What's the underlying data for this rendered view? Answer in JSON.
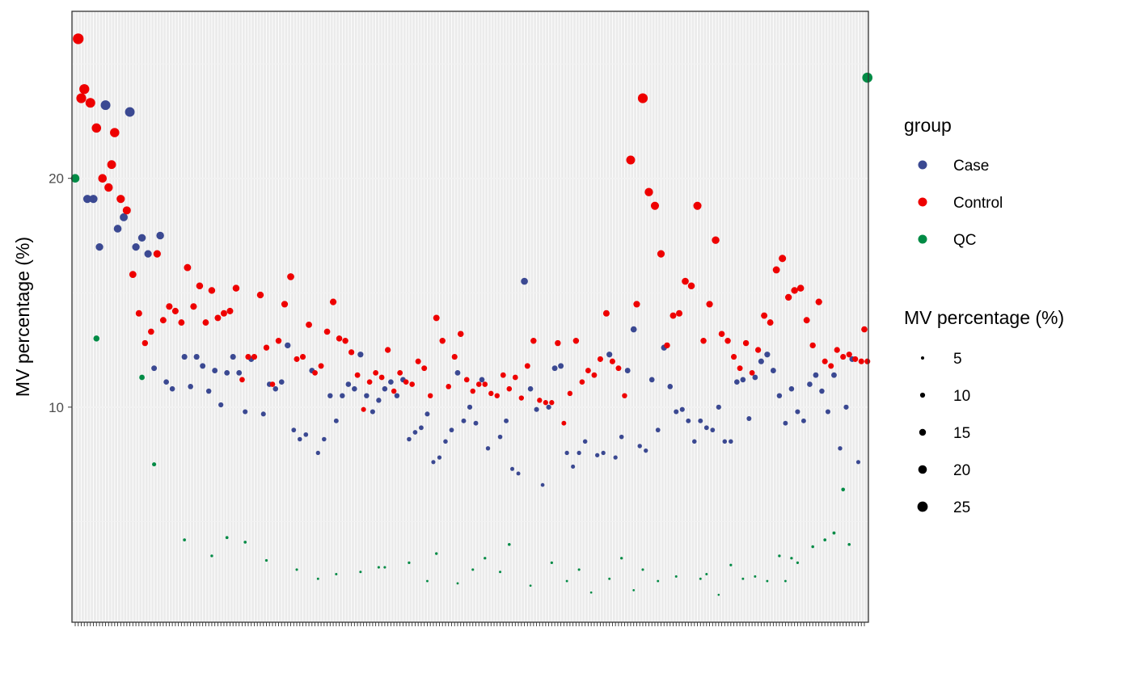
{
  "chart_data": {
    "type": "scatter",
    "title": "",
    "xlabel": "",
    "ylabel": "MV percentage (%)",
    "ylim": [
      0.6,
      27.3
    ],
    "y_ticks": [
      10,
      20
    ],
    "y_tick_labels": [
      "10",
      "20"
    ],
    "grid": true,
    "x_categories_count": 261,
    "x_tick_labels_visible": false,
    "colors": {
      "Case": "#3B4992",
      "Control": "#EE0000",
      "QC": "#008B45"
    },
    "legend": {
      "placement": "right",
      "color_title": "group",
      "color_entries": [
        "Case",
        "Control",
        "QC"
      ],
      "size_title": "MV percentage (%)",
      "size_entries": [
        "5",
        "10",
        "15",
        "20",
        "25"
      ]
    },
    "series": [
      {
        "name": "Case",
        "x": [
          4,
          6,
          8,
          10,
          14,
          16,
          18,
          20,
          22,
          24,
          26,
          28,
          30,
          32,
          36,
          38,
          40,
          42,
          44,
          46,
          48,
          50,
          52,
          54,
          56,
          58,
          62,
          64,
          66,
          68,
          70,
          72,
          74,
          76,
          78,
          80,
          82,
          84,
          86,
          88,
          90,
          92,
          94,
          96,
          98,
          100,
          102,
          104,
          106,
          108,
          110,
          112,
          114,
          116,
          118,
          120,
          122,
          124,
          126,
          128,
          130,
          132,
          134,
          136,
          140,
          142,
          144,
          146,
          148,
          150,
          152,
          154,
          156,
          158,
          160,
          162,
          164,
          166,
          168,
          172,
          174,
          176,
          178,
          180,
          182,
          184,
          186,
          188,
          190,
          192,
          194,
          196,
          198,
          200,
          202,
          204,
          206,
          208,
          210,
          212,
          214,
          216,
          218,
          220,
          222,
          224,
          226,
          228,
          230,
          232,
          234,
          236,
          238,
          240,
          242,
          244,
          246,
          248,
          250,
          252,
          254,
          256,
          258
        ],
        "y": [
          19.1,
          19.1,
          17.0,
          23.2,
          17.8,
          18.3,
          22.9,
          17.0,
          17.4,
          16.7,
          11.7,
          17.5,
          11.1,
          10.8,
          12.2,
          10.9,
          12.2,
          11.8,
          10.7,
          11.6,
          10.1,
          11.5,
          12.2,
          11.5,
          9.8,
          12.1,
          9.7,
          11.0,
          10.8,
          11.1,
          12.7,
          9.0,
          8.6,
          8.8,
          11.6,
          8.0,
          8.6,
          10.5,
          9.4,
          10.5,
          11.0,
          10.8,
          12.3,
          10.5,
          9.8,
          10.3,
          10.8,
          11.1,
          10.5,
          11.2,
          8.6,
          8.9,
          9.1,
          9.7,
          7.6,
          7.8,
          8.5,
          9.0,
          11.5,
          9.4,
          10.0,
          9.3,
          11.2,
          8.2,
          8.7,
          9.4,
          7.3,
          7.1,
          15.5,
          10.8,
          9.9,
          6.6,
          10.0,
          11.7,
          11.8,
          8.0,
          7.4,
          8.0,
          8.5,
          7.9,
          8.0,
          12.3,
          7.8,
          8.7,
          11.6,
          13.4,
          8.3,
          8.1,
          11.2,
          9.0,
          12.6,
          10.9,
          9.8,
          9.9,
          9.4,
          8.5,
          9.4,
          9.1,
          9.0,
          10.0,
          8.5,
          8.5,
          11.1,
          11.2,
          9.5,
          11.3,
          12.0,
          12.3,
          11.6,
          10.5,
          9.3,
          10.8,
          9.8,
          9.4,
          11.0,
          11.4,
          10.7,
          9.8,
          11.4,
          8.2,
          10.0,
          12.1,
          7.6
        ]
      },
      {
        "name": "Control",
        "x": [
          1,
          2,
          3,
          5,
          7,
          9,
          11,
          12,
          13,
          15,
          17,
          19,
          21,
          23,
          25,
          27,
          29,
          31,
          33,
          35,
          37,
          39,
          41,
          43,
          45,
          47,
          49,
          51,
          53,
          55,
          57,
          59,
          61,
          63,
          65,
          67,
          69,
          71,
          73,
          75,
          77,
          79,
          81,
          83,
          85,
          87,
          89,
          91,
          93,
          95,
          97,
          99,
          101,
          103,
          105,
          107,
          109,
          111,
          113,
          115,
          117,
          119,
          121,
          123,
          125,
          127,
          129,
          131,
          133,
          135,
          137,
          139,
          141,
          143,
          145,
          147,
          149,
          151,
          153,
          155,
          157,
          159,
          161,
          163,
          165,
          167,
          169,
          171,
          173,
          175,
          177,
          179,
          181,
          183,
          185,
          187,
          189,
          191,
          193,
          195,
          197,
          199,
          201,
          203,
          205,
          207,
          209,
          211,
          213,
          215,
          217,
          219,
          221,
          223,
          225,
          227,
          229,
          231,
          233,
          235,
          237,
          239,
          241,
          243,
          245,
          247,
          249,
          251,
          253,
          255,
          257,
          259,
          261,
          260
        ],
        "y": [
          26.1,
          23.5,
          23.9,
          23.3,
          22.2,
          20.0,
          19.6,
          20.6,
          22.0,
          19.1,
          18.6,
          15.8,
          14.1,
          12.8,
          13.3,
          16.7,
          13.8,
          14.4,
          14.2,
          13.7,
          16.1,
          14.4,
          15.3,
          13.7,
          15.1,
          13.9,
          14.1,
          14.2,
          15.2,
          11.2,
          12.2,
          12.2,
          14.9,
          12.6,
          11.0,
          12.9,
          14.5,
          15.7,
          12.1,
          12.2,
          13.6,
          11.5,
          11.8,
          13.3,
          14.6,
          13.0,
          12.9,
          12.4,
          11.4,
          9.9,
          11.1,
          11.5,
          11.3,
          12.5,
          10.7,
          11.5,
          11.1,
          11.0,
          12.0,
          11.7,
          10.5,
          13.9,
          12.9,
          10.9,
          12.2,
          13.2,
          11.2,
          10.7,
          11.0,
          11.0,
          10.6,
          10.5,
          11.4,
          10.8,
          11.3,
          10.4,
          11.8,
          12.9,
          10.3,
          10.2,
          10.2,
          12.8,
          9.3,
          10.6,
          12.9,
          11.1,
          11.6,
          11.4,
          12.1,
          14.1,
          12.0,
          11.7,
          10.5,
          20.8,
          14.5,
          23.5,
          19.4,
          18.8,
          16.7,
          12.7,
          14.0,
          14.1,
          15.5,
          15.3,
          18.8,
          12.9,
          14.5,
          17.3,
          13.2,
          12.9,
          12.2,
          11.7,
          12.8,
          11.5,
          12.5,
          14.0,
          13.7,
          16.0,
          16.5,
          14.8,
          15.1,
          15.2,
          13.8,
          12.7,
          14.6,
          12.0,
          11.8,
          12.5,
          12.2,
          12.3,
          12.1,
          12.0,
          12.0,
          13.4
        ]
      },
      {
        "name": "QC",
        "x": [
          0,
          7,
          22,
          26,
          36,
          45,
          50,
          56,
          63,
          73,
          80,
          86,
          94,
          102,
          110,
          119,
          126,
          135,
          143,
          150,
          162,
          170,
          180,
          187,
          198,
          206,
          212,
          220,
          228,
          234,
          238,
          243,
          247,
          253,
          261,
          255,
          250,
          236,
          232,
          224,
          216,
          208,
          192,
          184,
          176,
          166,
          157,
          140,
          131,
          116,
          100
        ],
        "y": [
          20.0,
          13.0,
          11.3,
          7.5,
          4.2,
          3.5,
          4.3,
          4.1,
          3.3,
          2.9,
          2.5,
          2.7,
          2.8,
          3.0,
          3.2,
          3.6,
          2.3,
          3.4,
          4.0,
          2.2,
          2.4,
          1.9,
          3.4,
          2.9,
          2.6,
          2.5,
          1.8,
          2.5,
          2.4,
          2.4,
          3.2,
          3.9,
          4.2,
          6.4,
          24.4,
          4.0,
          4.5,
          3.4,
          3.5,
          2.6,
          3.1,
          2.7,
          2.4,
          2.0,
          2.5,
          2.9,
          3.2,
          2.8,
          2.9,
          2.4,
          3.0
        ]
      }
    ]
  }
}
